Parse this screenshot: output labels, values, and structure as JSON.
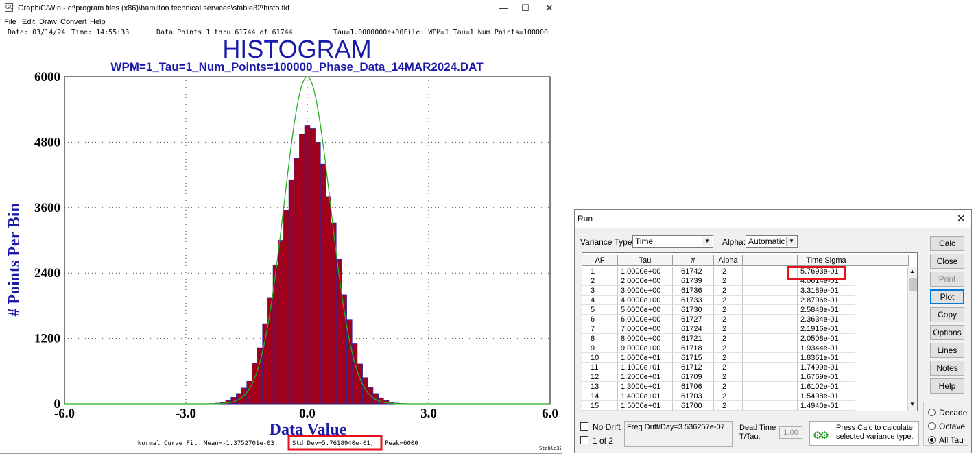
{
  "window": {
    "title": "GraphiC/Win - c:\\program files (x86)\\hamilton technical services\\stable32\\histo.tkf",
    "icon_label": "GC",
    "minimize": "—",
    "maximize": "☐",
    "close": "✕"
  },
  "menu": [
    "File",
    "Edit",
    "Draw",
    "Convert",
    "Help"
  ],
  "plot": {
    "date": "Date: 03/14/24",
    "time": "Time: 14:55:33",
    "points": "Data Points 1 thru 61744 of 61744",
    "tau_info": "Tau=1.0000000e+00File: WPM=1_Tau=1_Num_Points=100000_",
    "title": "HISTOGRAM",
    "subtitle": "WPM=1_Tau=1_Num_Points=100000_Phase_Data_14MAR2024.DAT",
    "ylabel": "# Points Per Bin",
    "xlabel": "Data Value",
    "fit_label": "Normal Curve Fit",
    "mean": "Mean=-1.3752701e-03,",
    "std_dev": "Std Dev=5.7618940e-01,",
    "peak": "Peak=6000",
    "watermark": "Stable32",
    "colors": {
      "bar": "#a0001c",
      "bar_edge": "#2a2aa0",
      "curve": "#22b022",
      "title": "#1a1aaa",
      "highlight": "#e8101a"
    }
  },
  "chart_data": {
    "type": "bar",
    "title": "HISTOGRAM",
    "subtitle": "WPM=1_Tau=1_Num_Points=100000_Phase_Data_14MAR2024.DAT",
    "xlabel": "Data Value",
    "ylabel": "# Points Per Bin",
    "xlim": [
      -6.0,
      6.0
    ],
    "ylim": [
      0,
      6000
    ],
    "xticks": [
      "-6.0",
      "-3.0",
      "0.0",
      "3.0",
      "6.0"
    ],
    "yticks": [
      "0",
      "1200",
      "2400",
      "3600",
      "4800",
      "6000"
    ],
    "bin_width": 0.13,
    "bin_centers": [
      -2.34,
      -2.21,
      -2.08,
      -1.95,
      -1.82,
      -1.69,
      -1.56,
      -1.43,
      -1.3,
      -1.17,
      -1.04,
      -0.91,
      -0.78,
      -0.65,
      -0.52,
      -0.39,
      -0.26,
      -0.13,
      0.0,
      0.13,
      0.26,
      0.39,
      0.52,
      0.65,
      0.78,
      0.91,
      1.04,
      1.17,
      1.3,
      1.43,
      1.56,
      1.69,
      1.82,
      1.95,
      2.08,
      2.21,
      2.34
    ],
    "values": [
      5,
      12,
      30,
      60,
      120,
      190,
      290,
      420,
      740,
      1030,
      1470,
      1950,
      2550,
      3000,
      3550,
      4110,
      4500,
      4950,
      5100,
      5050,
      4800,
      4400,
      3800,
      3320,
      2650,
      2000,
      1550,
      1100,
      730,
      480,
      300,
      190,
      110,
      60,
      30,
      12,
      5
    ],
    "curve": {
      "type": "normal",
      "mean": -0.0013752701,
      "std_dev": 0.5761894,
      "peak": 6000
    },
    "grid": true
  },
  "run_dialog": {
    "title": "Run",
    "close": "✕",
    "variance_type_label": "Variance Type:",
    "variance_type_value": "Time",
    "alpha_label": "Alpha:",
    "alpha_value": "Automatic",
    "columns": [
      "AF",
      "Tau",
      "#",
      "Alpha",
      "",
      "Time Sigma"
    ],
    "rows": [
      [
        "1",
        "1.0000e+00",
        "61742",
        "2",
        "",
        "5.7693e-01"
      ],
      [
        "2",
        "2.0000e+00",
        "61739",
        "2",
        "",
        "4.0614e-01"
      ],
      [
        "3",
        "3.0000e+00",
        "61736",
        "2",
        "",
        "3.3189e-01"
      ],
      [
        "4",
        "4.0000e+00",
        "61733",
        "2",
        "",
        "2.8796e-01"
      ],
      [
        "5",
        "5.0000e+00",
        "61730",
        "2",
        "",
        "2.5848e-01"
      ],
      [
        "6",
        "6.0000e+00",
        "61727",
        "2",
        "",
        "2.3634e-01"
      ],
      [
        "7",
        "7.0000e+00",
        "61724",
        "2",
        "",
        "2.1916e-01"
      ],
      [
        "8",
        "8.0000e+00",
        "61721",
        "2",
        "",
        "2.0508e-01"
      ],
      [
        "9",
        "9.0000e+00",
        "61718",
        "2",
        "",
        "1.9344e-01"
      ],
      [
        "10",
        "1.0000e+01",
        "61715",
        "2",
        "",
        "1.8361e-01"
      ],
      [
        "11",
        "1.1000e+01",
        "61712",
        "2",
        "",
        "1.7499e-01"
      ],
      [
        "12",
        "1.2000e+01",
        "61709",
        "2",
        "",
        "1.6769e-01"
      ],
      [
        "13",
        "1.3000e+01",
        "61706",
        "2",
        "",
        "1.6102e-01"
      ],
      [
        "14",
        "1.4000e+01",
        "61703",
        "2",
        "",
        "1.5498e-01"
      ],
      [
        "15",
        "1.5000e+01",
        "61700",
        "2",
        "",
        "1.4940e-01"
      ]
    ],
    "buttons": [
      "Calc",
      "Close",
      "Print",
      "Plot",
      "Copy",
      "Options",
      "Lines",
      "Notes",
      "Help"
    ],
    "radios": [
      {
        "label": "Decade",
        "checked": false
      },
      {
        "label": "Octave",
        "checked": false
      },
      {
        "label": "All Tau",
        "checked": true
      }
    ],
    "no_drift": "No Drift",
    "one_of_two": "1 of 2",
    "freq_drift": "Freq Drift/Day=3.536257e-07",
    "dead_time_label_1": "Dead Time",
    "dead_time_label_2": "T/Tau:",
    "dead_time_value": "1.00",
    "hint": "Press Calc to calculate selected variance type."
  }
}
